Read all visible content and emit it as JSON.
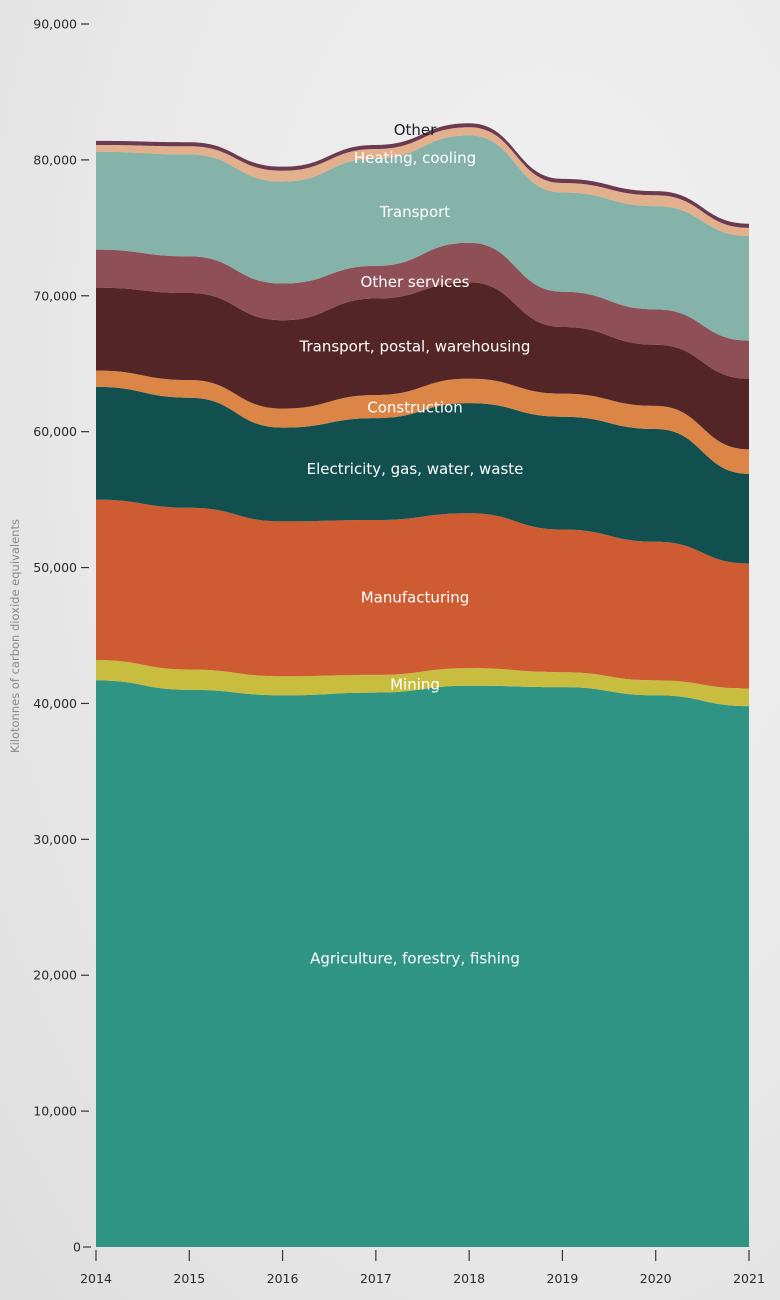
{
  "chart_data": {
    "type": "area",
    "stacked": true,
    "title": "",
    "xlabel": "",
    "ylabel": "Kilotonnes of carbon dioxide equivalents",
    "x": [
      2014,
      2015,
      2016,
      2017,
      2018,
      2019,
      2020,
      2021
    ],
    "x_tick_labels": [
      "2014",
      "2015",
      "2016",
      "2017",
      "2018",
      "2019",
      "2020",
      "2021"
    ],
    "ylim": [
      0,
      90000
    ],
    "y_ticks": [
      0,
      10000,
      20000,
      30000,
      40000,
      50000,
      60000,
      70000,
      80000,
      90000
    ],
    "y_tick_labels": [
      "0",
      "10,000",
      "20,000",
      "30,000",
      "40,000",
      "50,000",
      "60,000",
      "70,000",
      "80,000",
      "90,000"
    ],
    "grid": false,
    "legend": "inline labels",
    "series": [
      {
        "name": "Agriculture, forestry, fishing",
        "color": "#2f9483",
        "label_color": "light",
        "values": [
          41700,
          41000,
          40600,
          40800,
          41300,
          41200,
          40600,
          39800
        ]
      },
      {
        "name": "Mining",
        "color": "#c9bd40",
        "label_color": "light",
        "values": [
          1500,
          1500,
          1400,
          1300,
          1300,
          1100,
          1100,
          1300
        ]
      },
      {
        "name": "Manufacturing",
        "color": "#cf5b33",
        "label_color": "light",
        "values": [
          11800,
          11900,
          11400,
          11400,
          11400,
          10500,
          10200,
          9200
        ]
      },
      {
        "name": "Electricity, gas, water, waste",
        "color": "#125050",
        "label_color": "light",
        "values": [
          8300,
          8100,
          6900,
          7500,
          8100,
          8300,
          8300,
          6600
        ]
      },
      {
        "name": "Construction",
        "color": "#db8646",
        "label_color": "light",
        "values": [
          1200,
          1300,
          1400,
          1700,
          1800,
          1700,
          1700,
          1800
        ]
      },
      {
        "name": "Transport, postal, warehousing",
        "color": "#532527",
        "label_color": "light",
        "values": [
          6100,
          6400,
          6500,
          7100,
          7100,
          4900,
          4500,
          5200
        ]
      },
      {
        "name": "Other services",
        "color": "#8f4f56",
        "label_color": "light",
        "values": [
          2800,
          2700,
          2700,
          2400,
          2900,
          2600,
          2600,
          2800
        ]
      },
      {
        "name": "Transport",
        "color": "#85b3a9",
        "label_color": "light",
        "values": [
          7200,
          7500,
          7500,
          7900,
          7900,
          7300,
          7600,
          7700
        ]
      },
      {
        "name": "Heating, cooling",
        "color": "#e2b08c",
        "label_color": "light",
        "values": [
          500,
          600,
          800,
          700,
          600,
          700,
          800,
          600
        ]
      },
      {
        "name": "Other",
        "color": "#6b3a51",
        "label_color": "dark",
        "values": [
          300,
          300,
          300,
          300,
          300,
          300,
          300,
          300
        ]
      }
    ]
  }
}
